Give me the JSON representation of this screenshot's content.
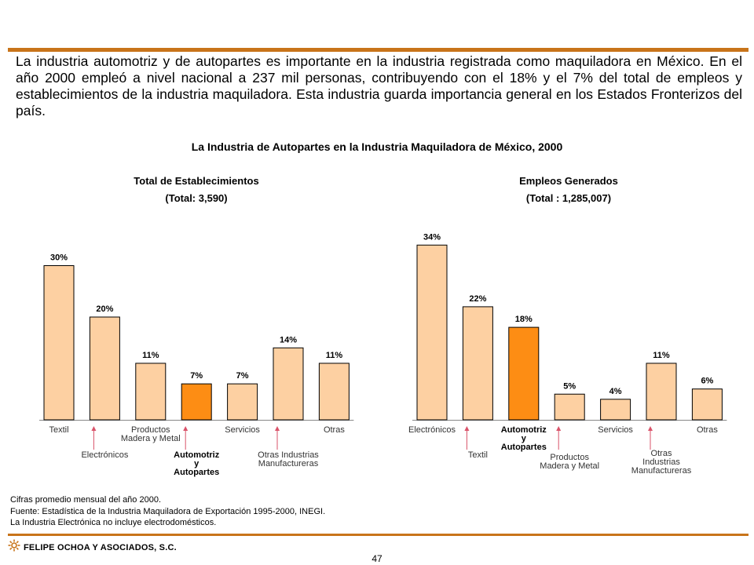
{
  "intro_text": "La industria automotriz y de autopartes es importante en la industria registrada como maquiladora en México. En el año 2000 empleó a nivel nacional a 237 mil personas, contribuyendo con el 18% y el 7% del total de empleos y establecimientos de la industria maquiladora. Esta industria guarda importancia general en los Estados Fronterizos del país.",
  "main_title": "La Industria de Autopartes en la Industria Maquiladora de México, 2000",
  "colors": {
    "bar": "#fdd0a2",
    "highlight": "#fd8d14",
    "rule": "#c8741a",
    "arrow": "#d9536a"
  },
  "chart_data": [
    {
      "type": "bar",
      "title": "Total de Establecimientos",
      "subtitle": "(Total: 3,590)",
      "categories": [
        "Textil",
        "Electrónicos",
        "Productos Madera y Metal",
        "Automotriz y Autopartes",
        "Servicios",
        "Otras Industrias Manufactureras",
        "Otras"
      ],
      "values": [
        30,
        20,
        11,
        7,
        7,
        14,
        11
      ],
      "value_labels": [
        "30%",
        "20%",
        "11%",
        "7%",
        "7%",
        "14%",
        "11%"
      ],
      "highlight_index": 3,
      "ylim": [
        0,
        34
      ],
      "grid": false
    },
    {
      "type": "bar",
      "title": "Empleos Generados",
      "subtitle": "(Total : 1,285,007)",
      "categories": [
        "Electrónicos",
        "Textil",
        "Automotriz y Autopartes",
        "Productos Madera y Metal",
        "Servicios",
        "Otras Industrias Manufactureras",
        "Otras"
      ],
      "values": [
        34,
        22,
        18,
        5,
        4,
        11,
        6
      ],
      "value_labels": [
        "34%",
        "22%",
        "18%",
        "5%",
        "4%",
        "11%",
        "6%"
      ],
      "highlight_index": 2,
      "ylim": [
        0,
        34
      ],
      "grid": false
    }
  ],
  "notes": [
    "Cifras promedio mensual del año 2000.",
    "Fuente: Estadística de la Industria Maquiladora de Exportación 1995-2000, INEGI.",
    "La Industria Electrónica no incluye electrodomésticos."
  ],
  "footer": {
    "company": "FELIPE OCHOA Y ASOCIADOS, S.C.",
    "page_number": "47"
  }
}
